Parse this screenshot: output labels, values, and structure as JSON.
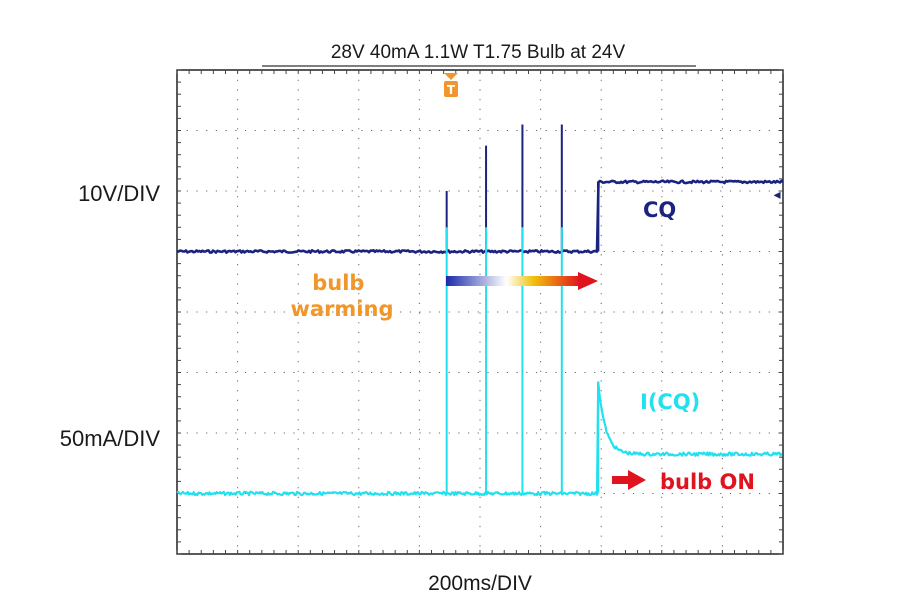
{
  "chart_data": {
    "type": "line",
    "title": "28V 40mA 1.1W T1.75 Bulb at 24V",
    "xlabel": "200ms/DIV",
    "grid": true,
    "divisions": {
      "x": 10,
      "y": 8
    },
    "channels": [
      {
        "scale_label": "10V/DIV",
        "trace_label": "CQ",
        "color": "#1a237e",
        "baseline_div": 5.0,
        "high_div": 6.15,
        "switch_div": 6.95,
        "spike_peak_div": [
          6.0,
          6.75,
          7.1,
          7.1
        ]
      },
      {
        "scale_label": "50mA/DIV",
        "trace_label": "I(CQ)",
        "color": "#22e0ee",
        "baseline_div": 1.0,
        "settled_div": 1.65,
        "overshoot_div": 2.85,
        "switch_div": 6.95,
        "spike_peak_div": [
          5.4,
          5.4,
          5.4,
          5.4
        ]
      }
    ],
    "spike_times_div": [
      4.45,
      5.1,
      5.7,
      6.35
    ],
    "trigger_marker": {
      "label": "T",
      "position_div": 4.45,
      "color": "#f0962a"
    },
    "annotations": [
      {
        "text": "bulb\nwarming",
        "color": "#f0962a"
      },
      {
        "text": "bulb ON",
        "color": "#e0141e"
      }
    ],
    "right_marker": "◂"
  }
}
